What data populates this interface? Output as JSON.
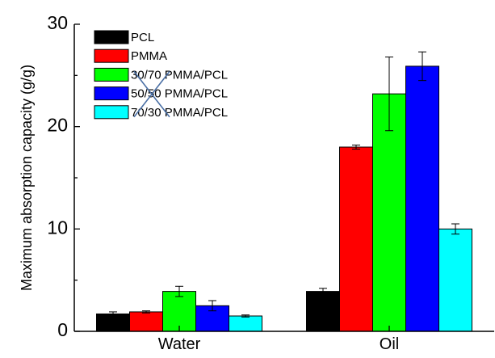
{
  "chart_data": {
    "type": "bar",
    "title": "",
    "xlabel": "",
    "ylabel": "Maximum absorption capacity (g/g)",
    "ylim": [
      0,
      30
    ],
    "yticks": [
      0,
      10,
      20,
      30
    ],
    "categories": [
      "Water",
      "Oil"
    ],
    "legend_position": "top-left",
    "grid": false,
    "series": [
      {
        "name": "PCL",
        "color": "#000000",
        "values": [
          1.7,
          3.9
        ],
        "errors": [
          0.2,
          0.3
        ]
      },
      {
        "name": "PMMA",
        "color": "#ff0000",
        "values": [
          1.9,
          18.0
        ],
        "errors": [
          0.1,
          0.2
        ]
      },
      {
        "name": "30/70 PMMA/PCL",
        "color": "#00ff00",
        "values": [
          3.9,
          23.2
        ],
        "errors": [
          0.5,
          3.6
        ]
      },
      {
        "name": "50/50 PMMA/PCL",
        "color": "#0000ff",
        "values": [
          2.5,
          25.9
        ],
        "errors": [
          0.5,
          1.4
        ]
      },
      {
        "name": "70/30 PMMA/PCL",
        "color": "#00ffff",
        "values": [
          1.5,
          10.0
        ],
        "errors": [
          0.1,
          0.5
        ]
      }
    ],
    "annotations": [
      {
        "type": "cross-mark",
        "color": "#4a6fa5",
        "over_legend_entries": [
          "30/70 PMMA/PCL",
          "50/50 PMMA/PCL",
          "70/30 PMMA/PCL"
        ]
      }
    ]
  }
}
